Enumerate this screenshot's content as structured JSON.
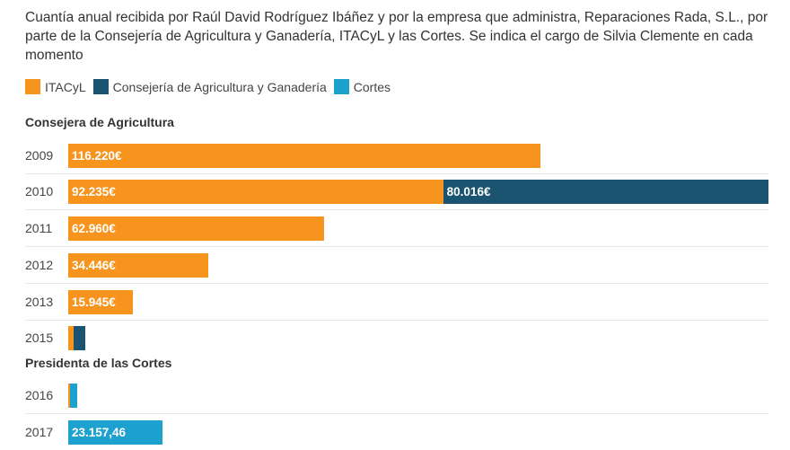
{
  "title": "Cuantía anual recibida por Raúl David Rodríguez Ibáñez y por la empresa que administra, Reparaciones Rada, S.L., por parte de la Consejería de Agricultura y Ganadería, ITACyL y las Cortes. Se indica el cargo de Silvia Clemente en cada momento",
  "chart_data": {
    "type": "bar",
    "orientation": "horizontal-stacked",
    "legend": [
      {
        "name": "ITACyL",
        "color": "#f7941d"
      },
      {
        "name": "Consejería de Agricultura y Ganadería",
        "color": "#1a5470"
      },
      {
        "name": "Cortes",
        "color": "#1da1cf"
      }
    ],
    "xlim": [
      0,
      172251
    ],
    "sections": [
      {
        "title": "Consejera de Agricultura",
        "rows": [
          {
            "year": "2009",
            "values": [
              116220,
              0,
              0
            ],
            "labels": [
              "116.220€",
              "",
              ""
            ]
          },
          {
            "year": "2010",
            "values": [
              92235,
              80016,
              0
            ],
            "labels": [
              "92.235€",
              "80.016€",
              ""
            ]
          },
          {
            "year": "2011",
            "values": [
              62960,
              0,
              0
            ],
            "labels": [
              "62.960€",
              "",
              ""
            ]
          },
          {
            "year": "2012",
            "values": [
              34446,
              0,
              0
            ],
            "labels": [
              "34.446€",
              "",
              ""
            ]
          },
          {
            "year": "2013",
            "values": [
              15945,
              0,
              0
            ],
            "labels": [
              "15.945€",
              "",
              ""
            ]
          },
          {
            "year": "2015",
            "values": [
              1300,
              2900,
              0
            ],
            "labels": [
              "",
              "",
              ""
            ]
          }
        ]
      },
      {
        "title": "Presidenta de las Cortes",
        "rows": [
          {
            "year": "2016",
            "values": [
              500,
              0,
              1800
            ],
            "labels": [
              "",
              "",
              ""
            ]
          },
          {
            "year": "2017",
            "values": [
              0,
              0,
              23157.46
            ],
            "labels": [
              "",
              "",
              "23.157,46"
            ]
          }
        ]
      }
    ]
  }
}
